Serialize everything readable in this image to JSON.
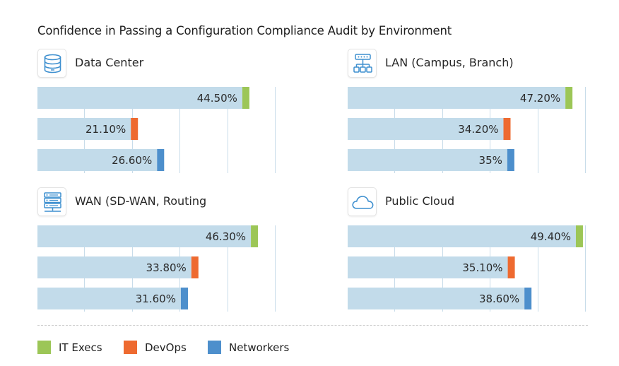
{
  "chart_data": {
    "type": "bar",
    "orientation": "horizontal",
    "title": "Confidence in Passing a Configuration Compliance Audit by Environment",
    "xlim": [
      0,
      50
    ],
    "grid": true,
    "legend": [
      {
        "name": "IT Execs",
        "color": "#9cc657"
      },
      {
        "name": "DevOps",
        "color": "#ee6a30"
      },
      {
        "name": "Networkers",
        "color": "#4d8fcc"
      }
    ],
    "panels": [
      {
        "title": "Data Center",
        "icon": "database-icon",
        "series": [
          "IT Execs",
          "DevOps",
          "Networkers"
        ],
        "values": [
          44.5,
          21.1,
          26.6
        ],
        "labels": [
          "44.50%",
          "21.10%",
          "26.60%"
        ]
      },
      {
        "title": "LAN (Campus, Branch)",
        "icon": "network-hierarchy-icon",
        "series": [
          "IT Execs",
          "DevOps",
          "Networkers"
        ],
        "values": [
          47.2,
          34.2,
          35
        ],
        "labels": [
          "47.20%",
          "34.20%",
          "35%"
        ]
      },
      {
        "title": "WAN (SD-WAN, Routing",
        "icon": "server-rack-icon",
        "series": [
          "IT Execs",
          "DevOps",
          "Networkers"
        ],
        "values": [
          46.3,
          33.8,
          31.6
        ],
        "labels": [
          "46.30%",
          "33.80%",
          "31.60%"
        ]
      },
      {
        "title": "Public Cloud",
        "icon": "cloud-icon",
        "series": [
          "IT Execs",
          "DevOps",
          "Networkers"
        ],
        "values": [
          49.4,
          35.1,
          38.6
        ],
        "labels": [
          "49.40%",
          "35.10%",
          "38.60%"
        ]
      }
    ]
  },
  "colors": {
    "bar_fill": "#c2dbea",
    "grid": "#c8dcea",
    "icon": "#3d8fcf"
  }
}
